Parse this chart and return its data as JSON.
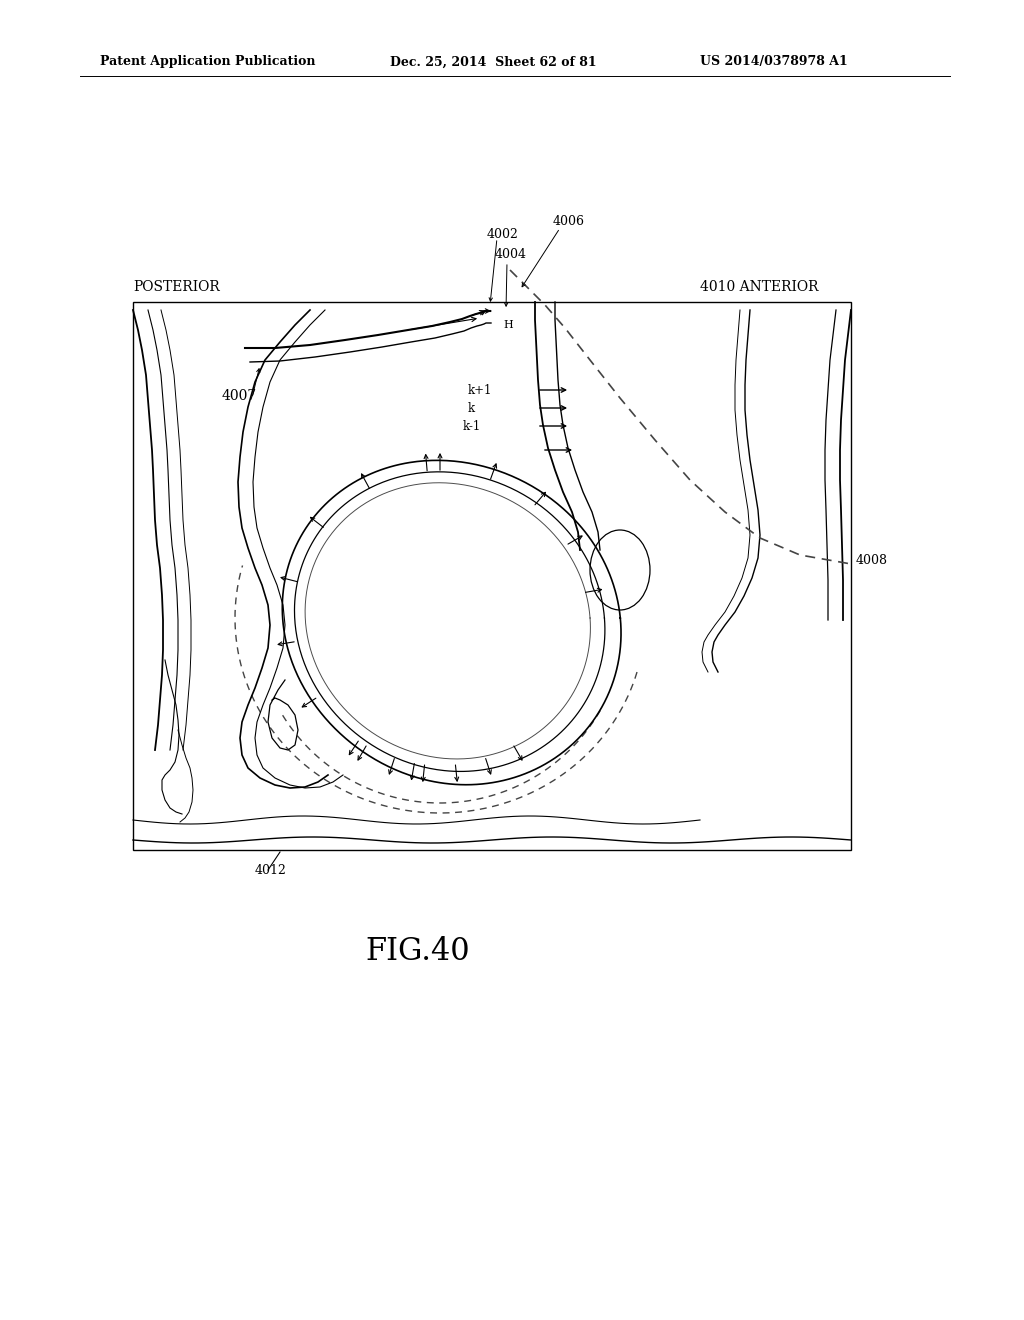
{
  "background_color": "#ffffff",
  "header_left": "Patent Application Publication",
  "header_center": "Dec. 25, 2014  Sheet 62 of 81",
  "header_right": "US 2014/0378978 A1",
  "figure_label": "FIG.40",
  "label_posterior": "POSTERIOR",
  "label_anterior": "ANTERIOR",
  "ref_4002": "4002",
  "ref_4004": "4004",
  "ref_4006": "4006",
  "ref_4007": "4007",
  "ref_4008": "4008",
  "ref_4010": "4010",
  "ref_4012": "4012",
  "ref_kplus1": "k+1",
  "ref_k": "k",
  "ref_kminus1": "k-1",
  "ref_h": "H",
  "line_color": "#000000",
  "dashed_color": "#444444",
  "gray_line": "#888888"
}
